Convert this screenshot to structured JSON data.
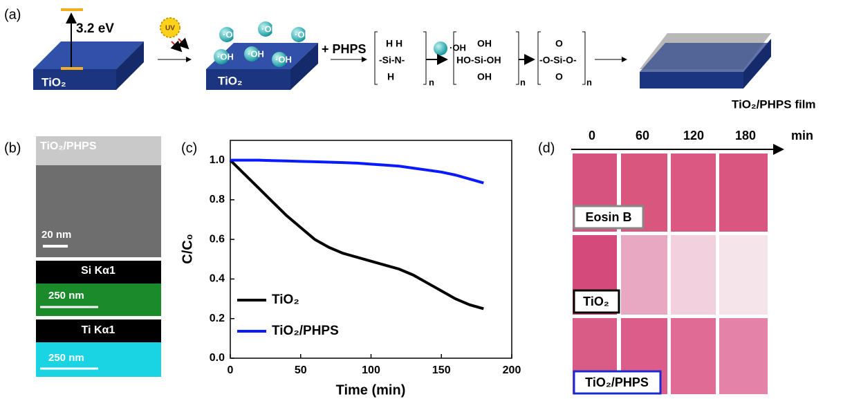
{
  "panel_a": {
    "label": "(a)",
    "band_gap": "3.2 eV",
    "substrate": "TiO₂",
    "uv": "UV",
    "radicals": [
      "·OH",
      "·OH",
      "·OH",
      "·OH",
      "·OH",
      "·OH"
    ],
    "substrate_2": "TiO₂",
    "reagent": "+ PHPS",
    "phps": {
      "h_top": "H  H",
      "chain": "-Si-N-",
      "h_bottom": "H",
      "n": "n"
    },
    "water": "·OH",
    "silanol": {
      "top": "OH",
      "chain": "HO-Si-OH",
      "bottom": "OH",
      "n": "n"
    },
    "silica": {
      "top": "O",
      "chain": "-O-Si-O-",
      "bottom": "O",
      "n": "n"
    },
    "product": "TiO₂/PHPS film"
  },
  "panel_b": {
    "label": "(b)",
    "tem_label": "TiO₂/PHPS",
    "tem_scale": "20 nm",
    "si_map": "Si Kα1",
    "si_scale": "250 nm",
    "ti_map": "Ti Kα1",
    "ti_scale": "250 nm"
  },
  "chart_data": {
    "type": "line",
    "panel_label": "(c)",
    "x_label": "Time (min)",
    "y_label": "C/C₀",
    "x": [
      0,
      10,
      20,
      30,
      40,
      50,
      60,
      70,
      80,
      90,
      100,
      110,
      120,
      130,
      140,
      150,
      160,
      170,
      180
    ],
    "series": [
      {
        "name": "TiO₂",
        "color": "#000000",
        "values": [
          1.0,
          0.93,
          0.86,
          0.79,
          0.72,
          0.66,
          0.6,
          0.56,
          0.53,
          0.51,
          0.49,
          0.47,
          0.45,
          0.42,
          0.38,
          0.34,
          0.3,
          0.27,
          0.25
        ]
      },
      {
        "name": "TiO₂/PHPS",
        "color": "#0a1aff",
        "values": [
          1.0,
          1.0,
          1.0,
          0.998,
          0.996,
          0.994,
          0.992,
          0.99,
          0.988,
          0.985,
          0.98,
          0.975,
          0.97,
          0.96,
          0.95,
          0.94,
          0.925,
          0.905,
          0.885
        ]
      }
    ],
    "xlim": [
      0,
      200
    ],
    "xticks": [
      0,
      50,
      100,
      150,
      200
    ],
    "ylim": [
      0,
      1.1
    ],
    "yticks": [
      {
        "value": 0,
        "label": "0.0"
      },
      0.2,
      0.4,
      0.6,
      0.8,
      {
        "value": 1,
        "label": "1.0"
      }
    ],
    "legend": "lower left"
  },
  "panel_d": {
    "label": "(d)",
    "times": [
      0,
      60,
      120,
      180
    ],
    "unit": "min",
    "rows": [
      "Eosin B",
      "TiO₂",
      "TiO₂/PHPS"
    ]
  }
}
